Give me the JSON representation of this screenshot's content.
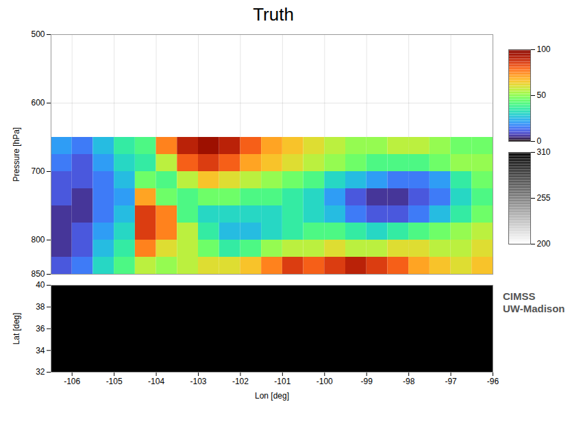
{
  "chart_data": {
    "type": "heatmap",
    "title": "Truth",
    "xlabel": "Lon [deg]",
    "ylabel": "Pressure [hPa]",
    "lat_label": "Lat [deg]",
    "xlim": [
      -106.5,
      -96
    ],
    "xticks": [
      -106,
      -105,
      -104,
      -103,
      -102,
      -101,
      -100,
      -99,
      -98,
      -97,
      -96
    ],
    "ylim": [
      850,
      500
    ],
    "yticks": [
      500,
      600,
      700,
      800,
      850
    ],
    "lat_lim": [
      32,
      40
    ],
    "lat_ticks": [
      32,
      34,
      36,
      38,
      40
    ],
    "grid": true,
    "lon_edges": [
      -106.5,
      -106,
      -105.5,
      -105,
      -104.5,
      -104,
      -103.5,
      -103,
      -102.5,
      -102,
      -101.5,
      -101,
      -100.5,
      -100,
      -99.5,
      -99,
      -98.5,
      -98,
      -97.5,
      -97,
      -96.5,
      -96
    ],
    "pressure_edges": [
      850,
      825,
      800,
      775,
      750,
      725,
      700,
      675,
      650
    ],
    "cells": [
      [
        10,
        15,
        30,
        40,
        55,
        50,
        55,
        60,
        60,
        65,
        75,
        85,
        80,
        85,
        90,
        85,
        80,
        70,
        65,
        60,
        65
      ],
      [
        5,
        10,
        25,
        35,
        75,
        60,
        55,
        45,
        35,
        40,
        50,
        55,
        55,
        60,
        55,
        55,
        60,
        60,
        55,
        55,
        60
      ],
      [
        5,
        10,
        20,
        30,
        85,
        75,
        55,
        35,
        25,
        25,
        30,
        35,
        40,
        40,
        35,
        30,
        35,
        40,
        45,
        50,
        55
      ],
      [
        5,
        5,
        15,
        25,
        85,
        75,
        40,
        30,
        30,
        30,
        30,
        35,
        30,
        25,
        15,
        10,
        10,
        15,
        25,
        35,
        45
      ],
      [
        10,
        5,
        15,
        20,
        70,
        45,
        40,
        45,
        45,
        40,
        40,
        35,
        30,
        20,
        10,
        5,
        5,
        10,
        15,
        30,
        40
      ],
      [
        10,
        10,
        15,
        25,
        45,
        40,
        55,
        65,
        60,
        55,
        50,
        45,
        40,
        30,
        25,
        20,
        15,
        15,
        20,
        35,
        45
      ],
      [
        15,
        10,
        20,
        30,
        35,
        55,
        80,
        85,
        80,
        70,
        65,
        60,
        55,
        50,
        45,
        40,
        40,
        40,
        45,
        50,
        50
      ],
      [
        20,
        15,
        25,
        35,
        40,
        75,
        90,
        95,
        90,
        80,
        70,
        65,
        60,
        55,
        50,
        50,
        55,
        55,
        50,
        45,
        45
      ]
    ],
    "colorbar": {
      "range": [
        0,
        100
      ],
      "ticks": [
        0,
        50,
        100
      ]
    },
    "colorbar2": {
      "range": [
        200,
        310
      ],
      "ticks": [
        200,
        255,
        310
      ]
    },
    "annotations": [
      "CIMSS",
      "UW-Madison"
    ]
  }
}
